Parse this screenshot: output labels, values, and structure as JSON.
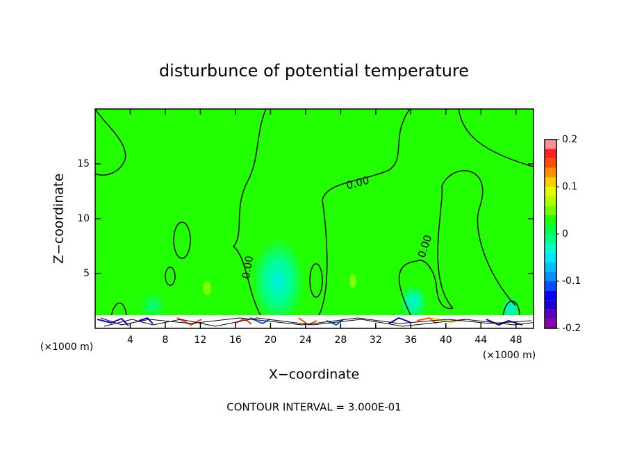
{
  "chart_data": {
    "type": "contour",
    "title": "disturbunce of potential temperature",
    "x_label": "X−coordinate",
    "y_label": "Z−coordinate",
    "x_unit_left": "(×1000 m)",
    "x_unit_right": "(×1000 m)",
    "xlim": [
      0,
      50
    ],
    "ylim": [
      0,
      20
    ],
    "xticks": [
      4,
      8,
      12,
      16,
      20,
      24,
      28,
      32,
      36,
      40,
      44,
      48
    ],
    "yticks": [
      5,
      10,
      15
    ],
    "contour_labels": [
      "0.00",
      "0.00",
      "0.00"
    ],
    "footer": "CONTOUR INTERVAL = 3.000E-01",
    "colorbar": {
      "bounds": [
        -0.2,
        -0.18,
        -0.16,
        -0.14,
        -0.12,
        -0.1,
        -0.08,
        -0.06,
        -0.04,
        -0.02,
        0,
        0.02,
        0.04,
        0.06,
        0.08,
        0.1,
        0.12,
        0.14,
        0.16,
        0.18,
        0.2
      ],
      "colors": [
        "#8a00b0",
        "#5a00c0",
        "#1a00d0",
        "#0000ff",
        "#0050ff",
        "#0090ff",
        "#00c0ff",
        "#00e8ff",
        "#00ffc8",
        "#00ff80",
        "#00ff40",
        "#20ff00",
        "#70ff00",
        "#b0ff00",
        "#e0ff00",
        "#ffd000",
        "#ff9000",
        "#ff5000",
        "#ff2020",
        "#ff9090"
      ],
      "ticks": [
        -0.2,
        -0.1,
        0,
        0.1,
        0.2
      ]
    }
  }
}
